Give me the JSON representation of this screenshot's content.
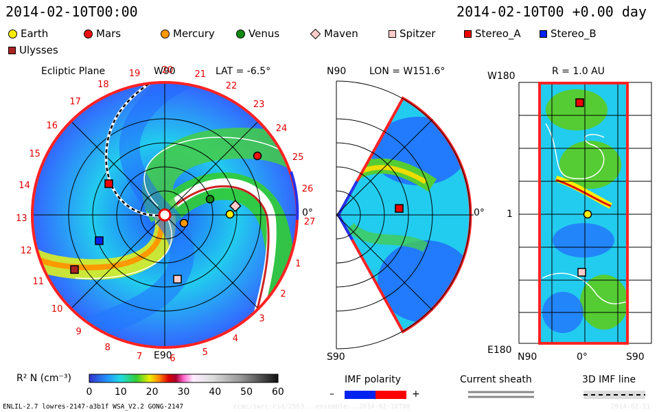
{
  "header": {
    "left_timestamp": "2014-02-10T00:00",
    "right_timestamp": "2014-02-10T00 +0.00 day"
  },
  "legend": [
    {
      "name": "Earth",
      "color": "#ffee00",
      "shape": "circle"
    },
    {
      "name": "Mars",
      "color": "#ee1111",
      "shape": "circle"
    },
    {
      "name": "Mercury",
      "color": "#ff9900",
      "shape": "circle"
    },
    {
      "name": "Venus",
      "color": "#118811",
      "shape": "circle"
    },
    {
      "name": "Maven",
      "color": "#ffcccc",
      "shape": "diamond"
    },
    {
      "name": "Spitzer",
      "color": "#ffcccc",
      "shape": "square"
    },
    {
      "name": "Stereo_A",
      "color": "#ee0000",
      "shape": "square"
    },
    {
      "name": "Stereo_B",
      "color": "#0022ee",
      "shape": "square"
    },
    {
      "name": "Ulysses",
      "color": "#aa2222",
      "shape": "square"
    }
  ],
  "ecliptic_panel": {
    "title": "Ecliptic Plane",
    "top_label": "W90",
    "bottom_label": "E90",
    "right_label": "0°",
    "lat_label": "LAT = -6.5°",
    "carrington_numbers": [
      "1",
      "2",
      "3",
      "4",
      "5",
      "6",
      "7",
      "8",
      "9",
      "10",
      "11",
      "12",
      "13",
      "14",
      "15",
      "16",
      "17",
      "18",
      "19",
      "20",
      "21",
      "22",
      "23",
      "24",
      "25",
      "26",
      "27"
    ]
  },
  "meridional_panel": {
    "lon_label": "LON = W151.6°",
    "top_label": "N90",
    "bottom_label": "S90",
    "right_label": "0°"
  },
  "map_panel": {
    "r_label": "R = 1.0 AU",
    "top_left_label": "W180",
    "bottom_left_label": "E180",
    "mid_left_label": "1",
    "bottom_labels": [
      "N90",
      "0°",
      "S90"
    ]
  },
  "colorbar": {
    "label": "R² N (cm⁻³)",
    "ticks": [
      "0",
      "10",
      "20",
      "30",
      "40",
      "50",
      "60"
    ]
  },
  "imf_polarity": {
    "title": "IMF polarity",
    "minus": "–",
    "plus": "+"
  },
  "current_sheath": {
    "title": "Current sheath"
  },
  "imf_line": {
    "title": "3D IMF line"
  },
  "footer": {
    "model": "ENLIL-2.7 lowres-2147-a3b1f WSA_V2.2 GONG-2147",
    "run_id": "ccmc/swrc-cid/2563...ensemble...2014-02-10T00",
    "right": "2014-02-11"
  }
}
